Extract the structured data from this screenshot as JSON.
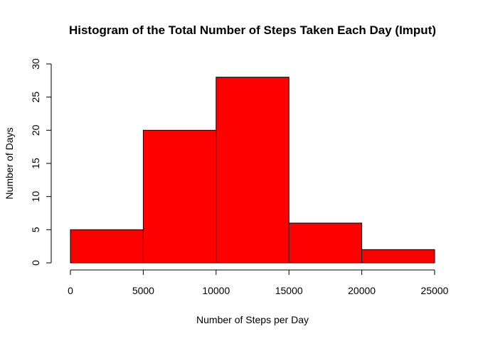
{
  "chart_data": {
    "type": "bar",
    "title": "Histogram of the Total Number of Steps Taken Each Day (Imput)",
    "xlabel": "Number of Steps per Day",
    "ylabel": "Number of Days",
    "bins": [
      {
        "from": 0,
        "to": 5000,
        "count": 5
      },
      {
        "from": 5000,
        "to": 10000,
        "count": 20
      },
      {
        "from": 10000,
        "to": 15000,
        "count": 28
      },
      {
        "from": 15000,
        "to": 20000,
        "count": 6
      },
      {
        "from": 20000,
        "to": 25000,
        "count": 2
      }
    ],
    "xlim": [
      0,
      25000
    ],
    "ylim": [
      0,
      30
    ],
    "x_ticks": [
      "0",
      "5000",
      "10000",
      "15000",
      "20000",
      "25000"
    ],
    "y_ticks": [
      "0",
      "5",
      "10",
      "15",
      "20",
      "25",
      "30"
    ],
    "bar_color": "#ff0000",
    "border_color": "#000000",
    "grid": false
  }
}
